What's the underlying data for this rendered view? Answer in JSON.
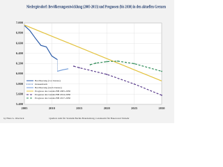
{
  "chart_data": {
    "type": "line",
    "title": "Niedergörsdorf: Bevölkerungsentwicklung (2005-2013) und Prognosen (bis 2030) in den aktuellen Grenzen",
    "xlim": [
      2005,
      2030
    ],
    "xticks": [
      2005,
      2010,
      2015,
      2020,
      2025,
      2030
    ],
    "ylim": [
      5400,
      7000
    ],
    "yticks": [
      {
        "value": 7000,
        "label": "7.000"
      },
      {
        "value": 6800,
        "label": "6.800"
      },
      {
        "value": 6600,
        "label": "6.600"
      },
      {
        "value": 6400,
        "label": "6.400"
      },
      {
        "value": 6200,
        "label": "6.200"
      },
      {
        "value": 6000,
        "label": "6.000"
      },
      {
        "value": 5800,
        "label": "5.800"
      },
      {
        "value": 5600,
        "label": "5.600"
      },
      {
        "value": 5400,
        "label": "5.400"
      }
    ],
    "grid": true,
    "series": [
      {
        "name": "Bevölkerung (vor Zensus)",
        "color": "#2b5ba8",
        "dash": "none",
        "x": [
          2005,
          2006,
          2007,
          2008,
          2009,
          2010,
          2011
        ],
        "values": [
          6950,
          6850,
          6700,
          6560,
          6530,
          6350,
          6280
        ]
      },
      {
        "name": "Zensusbruch",
        "color": "#2b5ba8",
        "dash": "1,1",
        "x": [
          2011,
          2011
        ],
        "values": [
          6280,
          6050
        ]
      },
      {
        "name": "Bevölkerung (nach Zensus)",
        "color": "#6f9ad8",
        "dash": "none",
        "x": [
          2011,
          2012,
          2013
        ],
        "values": [
          6050,
          6080,
          6100
        ]
      },
      {
        "name": "Prognose des Landes BB 2005-2030",
        "color": "#e3c23c",
        "dash": "none",
        "x": [
          2005,
          2010,
          2015,
          2020,
          2025,
          2030
        ],
        "values": [
          6960,
          6740,
          6520,
          6300,
          6080,
          5860
        ]
      },
      {
        "name": "Prognose des Landes BB 2014-2030",
        "color": "#5a3c8c",
        "dash": "3,2",
        "x": [
          2014,
          2015,
          2020,
          2025,
          2030
        ],
        "values": [
          6150,
          6120,
          5990,
          5800,
          5580
        ]
      },
      {
        "name": "Prognose des Landes BB 2017-2030",
        "color": "#2e8b57",
        "dash": "3,2",
        "x": [
          2017,
          2018,
          2020,
          2022,
          2025,
          2030
        ],
        "values": [
          6180,
          6210,
          6240,
          6250,
          6200,
          6050
        ]
      }
    ],
    "footer_left": "by Hans G. Oberlack",
    "footer_center": "Quellen: Amt für Statistik Berlin-Brandenburg, Landesamt für Bauen und Verkehr"
  }
}
